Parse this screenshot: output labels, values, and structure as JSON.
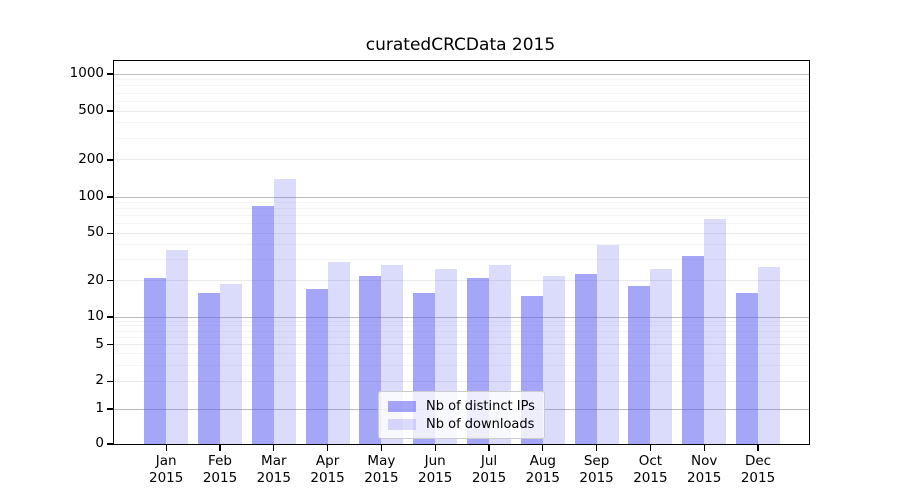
{
  "title": "curatedCRCData 2015",
  "legend": {
    "items": [
      {
        "label": "Nb of distinct IPs",
        "color": "rgba(92,92,242,0.55)"
      },
      {
        "label": "Nb of downloads",
        "color": "rgba(92,92,242,0.22)"
      }
    ]
  },
  "axes": {
    "y_tick_labels": [
      "1000",
      "500",
      "200",
      "100",
      "50",
      "20",
      "10",
      "5",
      "2",
      "1",
      "0"
    ],
    "y_tick_values": [
      1000,
      500,
      200,
      100,
      50,
      20,
      10,
      5,
      2,
      1,
      0
    ],
    "x_tick_months": [
      "Jan",
      "Feb",
      "Mar",
      "Apr",
      "May",
      "Jun",
      "Jul",
      "Aug",
      "Sep",
      "Oct",
      "Nov",
      "Dec"
    ],
    "x_tick_year": "2015"
  },
  "colors": {
    "bar_dark": "rgba(92,92,242,0.55)",
    "bar_light": "rgba(92,92,242,0.22)",
    "grid_major": "#bbbbbb",
    "grid_mid": "#e9e9e9",
    "grid_minor": "#f4f4f4",
    "spine": "#000000"
  },
  "chart_data": {
    "type": "bar",
    "title": "curatedCRCData 2015",
    "categories": [
      "Jan 2015",
      "Feb 2015",
      "Mar 2015",
      "Apr 2015",
      "May 2015",
      "Jun 2015",
      "Jul 2015",
      "Aug 2015",
      "Sep 2015",
      "Oct 2015",
      "Nov 2015",
      "Dec 2015"
    ],
    "series": [
      {
        "name": "Nb of distinct IPs",
        "values": [
          21,
          16,
          84,
          17,
          22,
          16,
          21,
          15,
          23,
          18,
          32,
          16
        ]
      },
      {
        "name": "Nb of downloads",
        "values": [
          36,
          19,
          140,
          29,
          27,
          25,
          27,
          22,
          40,
          25,
          66,
          26
        ]
      }
    ],
    "xlabel": "",
    "ylabel": "",
    "yscale": "symlog",
    "yticks": [
      0,
      1,
      2,
      5,
      10,
      20,
      50,
      100,
      200,
      500,
      1000
    ],
    "ylim": [
      0,
      1400
    ],
    "grid": "horizontal",
    "legend_position": "lower center"
  }
}
